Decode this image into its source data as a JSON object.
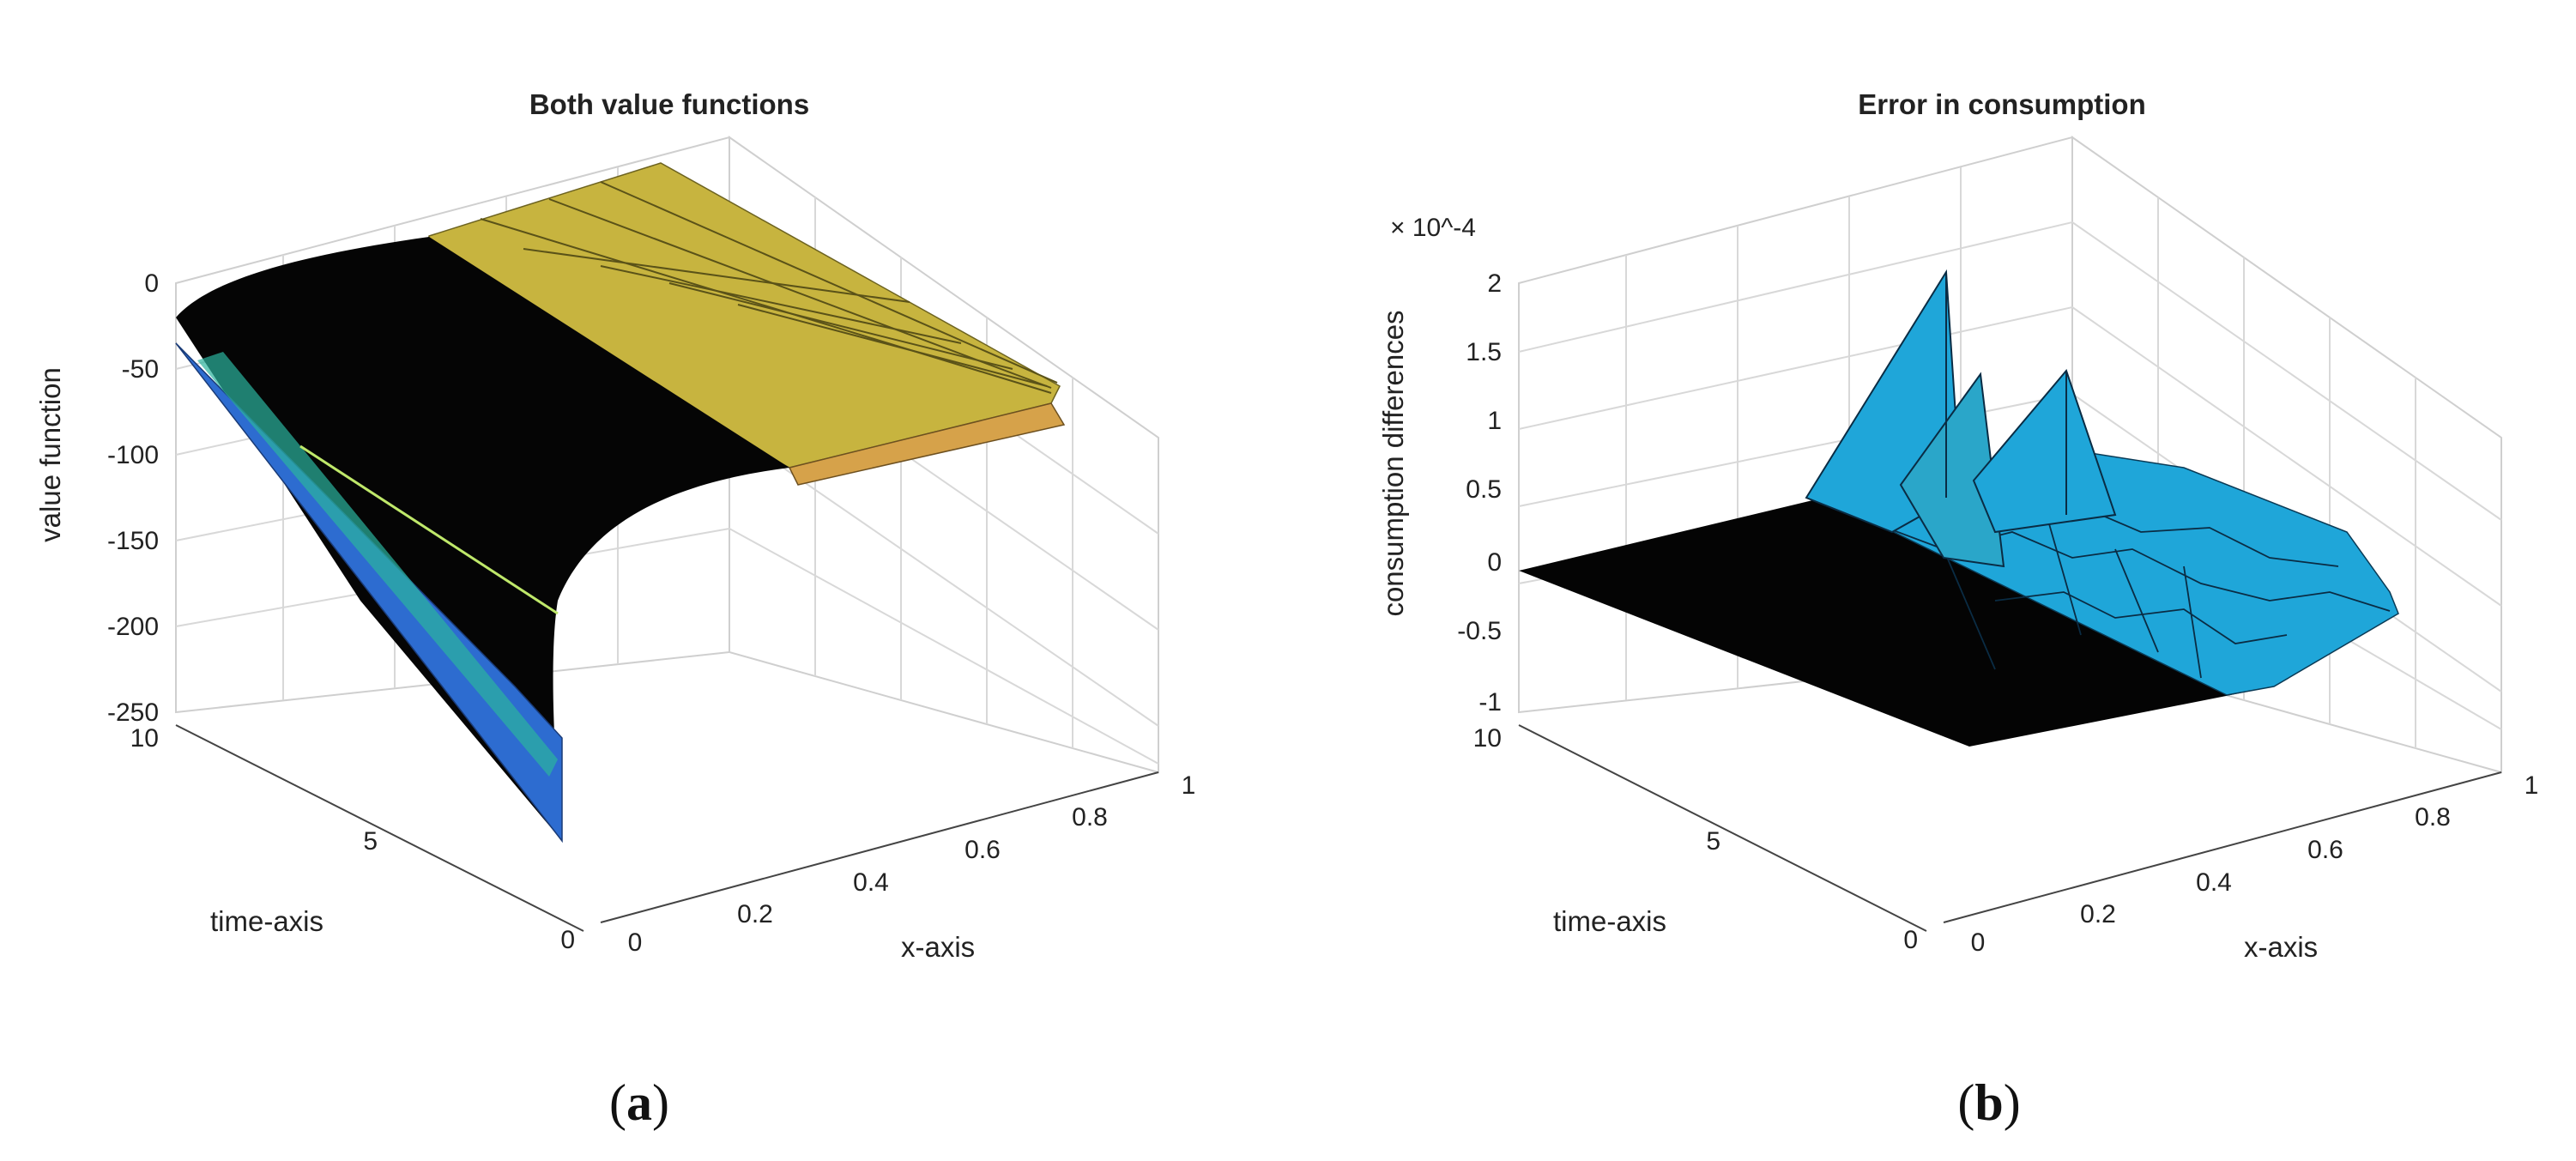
{
  "chart_data": [
    {
      "type": "surface",
      "title": "Both value functions",
      "xlabel": "x-axis",
      "ylabel": "time-axis",
      "zlabel": "value function",
      "xlim": [
        0,
        1
      ],
      "ylim": [
        0,
        10
      ],
      "zlim": [
        -250,
        0
      ],
      "xticks": [
        "0",
        "0.2",
        "0.4",
        "0.6",
        "0.8",
        "1"
      ],
      "yticks": [
        "0",
        "5",
        "10"
      ],
      "zticks": [
        "0",
        "-50",
        "-100",
        "-150",
        "-200",
        "-250"
      ],
      "grid": true,
      "colormap": [
        "#3d2a8c",
        "#2f6fd6",
        "#2db6a8",
        "#c9c43a",
        "#e8d23c"
      ],
      "x_profile": [
        0,
        0.05,
        0.1,
        0.2,
        0.3,
        0.4,
        0.5,
        0.6,
        0.7,
        0.8,
        0.9,
        1.0
      ],
      "surfaces": [
        {
          "edge": "x=0 from t=10 to t=0",
          "z_at_t10": -25,
          "z_at_t0": -230
        },
        {
          "profile_at_t10": [
            -25,
            -10,
            -5,
            0,
            0,
            0,
            0,
            0,
            0,
            0,
            0,
            0
          ]
        }
      ],
      "caption": "(a)"
    },
    {
      "type": "surface",
      "title": "Error in consumption",
      "exponent": "× 10^-4",
      "xlabel": "x-axis",
      "ylabel": "time-axis",
      "zlabel": "consumption differences",
      "xlim": [
        0,
        1
      ],
      "ylim": [
        0,
        10
      ],
      "zlim": [
        -1,
        2
      ],
      "xticks": [
        "0",
        "0.2",
        "0.4",
        "0.6",
        "0.8",
        "1"
      ],
      "yticks": [
        "0",
        "5",
        "10"
      ],
      "zticks": [
        "-1",
        "-0.5",
        "0",
        "0.5",
        "1",
        "1.5",
        "2"
      ],
      "grid": true,
      "color": "#1fa6d9",
      "peaks": [
        {
          "x": 0.2,
          "t": 10,
          "value": 2.0
        },
        {
          "x": 0.3,
          "t": 9.5,
          "value": 1.45
        },
        {
          "x": 0.4,
          "t": 9.3,
          "value": 1.6
        }
      ],
      "caption": "(b)"
    }
  ]
}
